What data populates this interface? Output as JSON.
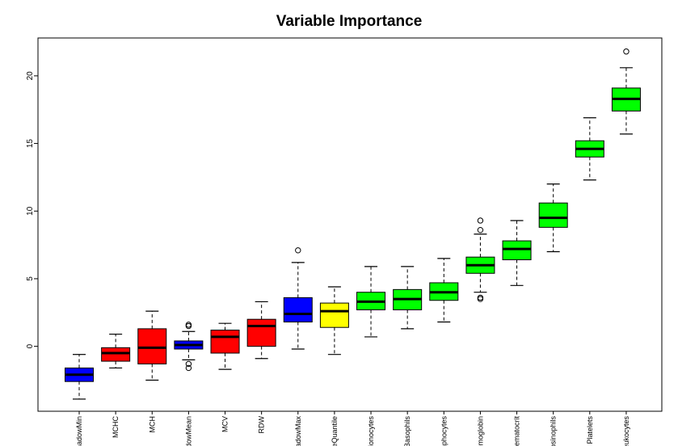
{
  "chart_data": {
    "type": "boxplot",
    "title": "Variable Importance",
    "xlabel": "",
    "ylabel": "",
    "ylim": [
      -4.8,
      22.8
    ],
    "yticks": [
      0,
      5,
      10,
      15,
      20
    ],
    "ytick_labels": [
      "0",
      "5",
      "10",
      "15",
      "20"
    ],
    "colors": {
      "shadow": "#0000ff",
      "rejected": "#ff0000",
      "tentative": "#ffff00",
      "confirmed": "#00ff00"
    },
    "boxes": [
      {
        "label": "shadowMin",
        "color": "shadow",
        "whisker_low": -3.9,
        "q1": -2.6,
        "median": -2.1,
        "q3": -1.6,
        "whisker_high": -0.6,
        "outliers": []
      },
      {
        "label": "MCHC",
        "color": "rejected",
        "whisker_low": -1.6,
        "q1": -1.1,
        "median": -0.5,
        "q3": -0.1,
        "whisker_high": 0.9,
        "outliers": []
      },
      {
        "label": "MCH",
        "color": "rejected",
        "whisker_low": -2.5,
        "q1": -1.3,
        "median": -0.1,
        "q3": 1.3,
        "whisker_high": 2.6,
        "outliers": []
      },
      {
        "label": "shadowMean",
        "color": "shadow",
        "whisker_low": -1.0,
        "q1": -0.2,
        "median": 0.1,
        "q3": 0.4,
        "whisker_high": 1.1,
        "outliers": [
          1.6,
          1.5,
          -1.3,
          -1.6
        ]
      },
      {
        "label": "MCV",
        "color": "rejected",
        "whisker_low": -1.7,
        "q1": -0.5,
        "median": 0.7,
        "q3": 1.2,
        "whisker_high": 1.7,
        "outliers": []
      },
      {
        "label": "RDW",
        "color": "rejected",
        "whisker_low": -0.9,
        "q1": 0.0,
        "median": 1.5,
        "q3": 2.0,
        "whisker_high": 3.3,
        "outliers": []
      },
      {
        "label": "shadowMax",
        "color": "shadow",
        "whisker_low": -0.2,
        "q1": 1.8,
        "median": 2.4,
        "q3": 3.6,
        "whisker_high": 6.2,
        "outliers": [
          7.1
        ]
      },
      {
        "label": "rangeQuantile",
        "color": "tentative",
        "whisker_low": -0.6,
        "q1": 1.4,
        "median": 2.6,
        "q3": 3.2,
        "whisker_high": 4.4,
        "outliers": []
      },
      {
        "label": "Monocytes",
        "color": "confirmed",
        "whisker_low": 0.7,
        "q1": 2.7,
        "median": 3.3,
        "q3": 4.0,
        "whisker_high": 5.9,
        "outliers": []
      },
      {
        "label": "Basophils",
        "color": "confirmed",
        "whisker_low": 1.3,
        "q1": 2.7,
        "median": 3.5,
        "q3": 4.2,
        "whisker_high": 5.9,
        "outliers": []
      },
      {
        "label": "Lymphocytes",
        "color": "confirmed",
        "whisker_low": 1.8,
        "q1": 3.4,
        "median": 4.0,
        "q3": 4.7,
        "whisker_high": 6.5,
        "outliers": []
      },
      {
        "label": "Hemoglobin",
        "color": "confirmed",
        "whisker_low": 4.0,
        "q1": 5.4,
        "median": 6.0,
        "q3": 6.6,
        "whisker_high": 8.3,
        "outliers": [
          9.3,
          8.6,
          3.6,
          3.5
        ]
      },
      {
        "label": "Hematocrit",
        "color": "confirmed",
        "whisker_low": 4.5,
        "q1": 6.4,
        "median": 7.2,
        "q3": 7.8,
        "whisker_high": 9.3,
        "outliers": []
      },
      {
        "label": "Eosinophils",
        "color": "confirmed",
        "whisker_low": 7.0,
        "q1": 8.8,
        "median": 9.5,
        "q3": 10.6,
        "whisker_high": 12.0,
        "outliers": []
      },
      {
        "label": "Platelets",
        "color": "confirmed",
        "whisker_low": 12.3,
        "q1": 14.0,
        "median": 14.6,
        "q3": 15.2,
        "whisker_high": 16.9,
        "outliers": []
      },
      {
        "label": "Leukocytes",
        "color": "confirmed",
        "whisker_low": 15.7,
        "q1": 17.4,
        "median": 18.3,
        "q3": 19.1,
        "whisker_high": 20.6,
        "outliers": [
          21.8
        ]
      }
    ]
  }
}
